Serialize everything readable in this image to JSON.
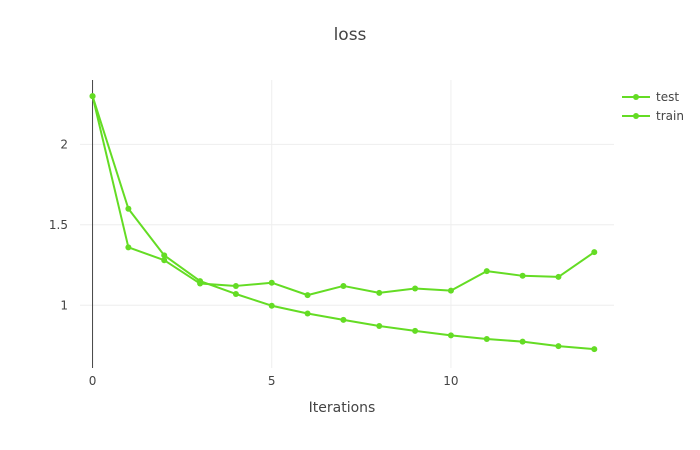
{
  "chart_data": {
    "type": "line",
    "title": "loss",
    "xlabel": "Iterations",
    "ylabel": "",
    "xlim": [
      -0.35,
      14.55
    ],
    "ylim": [
      0.61,
      2.4
    ],
    "xticks": [
      0,
      5,
      10
    ],
    "xtick_labels": [
      "0",
      "5",
      "10"
    ],
    "yticks": [
      1,
      1.5,
      2
    ],
    "ytick_labels": [
      "1",
      "1.5",
      "2"
    ],
    "grid": true,
    "legend_position": "top-right",
    "series": [
      {
        "name": "test",
        "color": "#64dc24",
        "x": [
          0,
          1,
          2,
          3,
          4,
          5,
          6,
          7,
          8,
          9,
          10,
          11,
          12,
          13,
          14
        ],
        "y": [
          2.3,
          1.6,
          1.31,
          1.15,
          1.07,
          0.997,
          0.949,
          0.909,
          0.871,
          0.841,
          0.813,
          0.79,
          0.774,
          0.746,
          0.727
        ]
      },
      {
        "name": "train",
        "color": "#64dc24",
        "x": [
          0,
          1,
          2,
          3,
          4,
          5,
          6,
          7,
          8,
          9,
          10,
          11,
          12,
          13,
          14
        ],
        "y": [
          2.3,
          1.36,
          1.28,
          1.135,
          1.12,
          1.14,
          1.063,
          1.12,
          1.077,
          1.104,
          1.091,
          1.212,
          1.183,
          1.176,
          1.33
        ]
      }
    ]
  }
}
